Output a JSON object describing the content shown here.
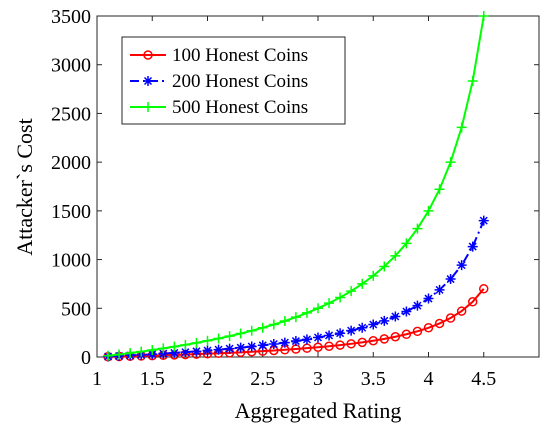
{
  "chart_data": {
    "type": "line",
    "xlabel": "Aggregated Rating",
    "ylabel": "Attacker`s Cost",
    "x": [
      1.1,
      1.2,
      1.3,
      1.4,
      1.5,
      1.6,
      1.7,
      1.8,
      1.9,
      2.0,
      2.1,
      2.2,
      2.3,
      2.4,
      2.5,
      2.6,
      2.7,
      2.8,
      2.9,
      3.0,
      3.1,
      3.2,
      3.3,
      3.4,
      3.5,
      3.6,
      3.7,
      3.8,
      3.9,
      4.0,
      4.1,
      4.2,
      4.3,
      4.4,
      4.5
    ],
    "series": [
      {
        "name": "100 Honest Coins",
        "color": "#ff0000",
        "marker": "circle",
        "linestyle": "solid",
        "values": [
          2.6,
          5.3,
          8.1,
          11.1,
          14.3,
          17.6,
          21.2,
          25,
          29,
          33.3,
          37.9,
          42.9,
          48.1,
          53.8,
          60,
          66.7,
          73.9,
          81.8,
          90.5,
          100,
          110.5,
          122.2,
          135.3,
          150,
          166.7,
          185.7,
          207.7,
          233.3,
          263.6,
          300,
          344.4,
          400,
          471.4,
          566.7,
          700
        ]
      },
      {
        "name": "200 Honest Coins",
        "color": "#0000ff",
        "marker": "asterisk",
        "linestyle": "dashdot",
        "values": [
          5.1,
          10.5,
          16.2,
          22.2,
          28.6,
          35.3,
          42.4,
          50,
          58.1,
          66.7,
          75.9,
          85.7,
          96.3,
          107.7,
          120,
          133.3,
          147.8,
          163.6,
          181,
          200,
          221.1,
          244.4,
          270.6,
          300,
          333.3,
          371.4,
          415.4,
          466.7,
          527.3,
          600,
          688.9,
          800,
          942.9,
          1133.3,
          1400
        ]
      },
      {
        "name": "500 Honest Coins",
        "color": "#00ff00",
        "marker": "plus",
        "linestyle": "solid",
        "values": [
          12.8,
          26.3,
          40.5,
          55.6,
          71.4,
          88.2,
          106.1,
          125,
          145.2,
          166.7,
          189.7,
          214.3,
          240.7,
          269.2,
          300,
          333.3,
          369.6,
          409.1,
          452.4,
          500,
          552.6,
          611.1,
          676.5,
          750,
          833.3,
          928.6,
          1038.5,
          1166.7,
          1318.2,
          1500,
          1722.2,
          2000,
          2357.1,
          2833.3,
          3500
        ]
      }
    ],
    "xlim": [
      1,
      5
    ],
    "xticks": [
      1,
      1.5,
      2,
      2.5,
      3,
      3.5,
      4,
      4.5
    ],
    "ylim": [
      0,
      3500
    ],
    "yticks": [
      0,
      500,
      1000,
      1500,
      2000,
      2500,
      3000,
      3500
    ],
    "legend": "upper left",
    "grid": false
  }
}
